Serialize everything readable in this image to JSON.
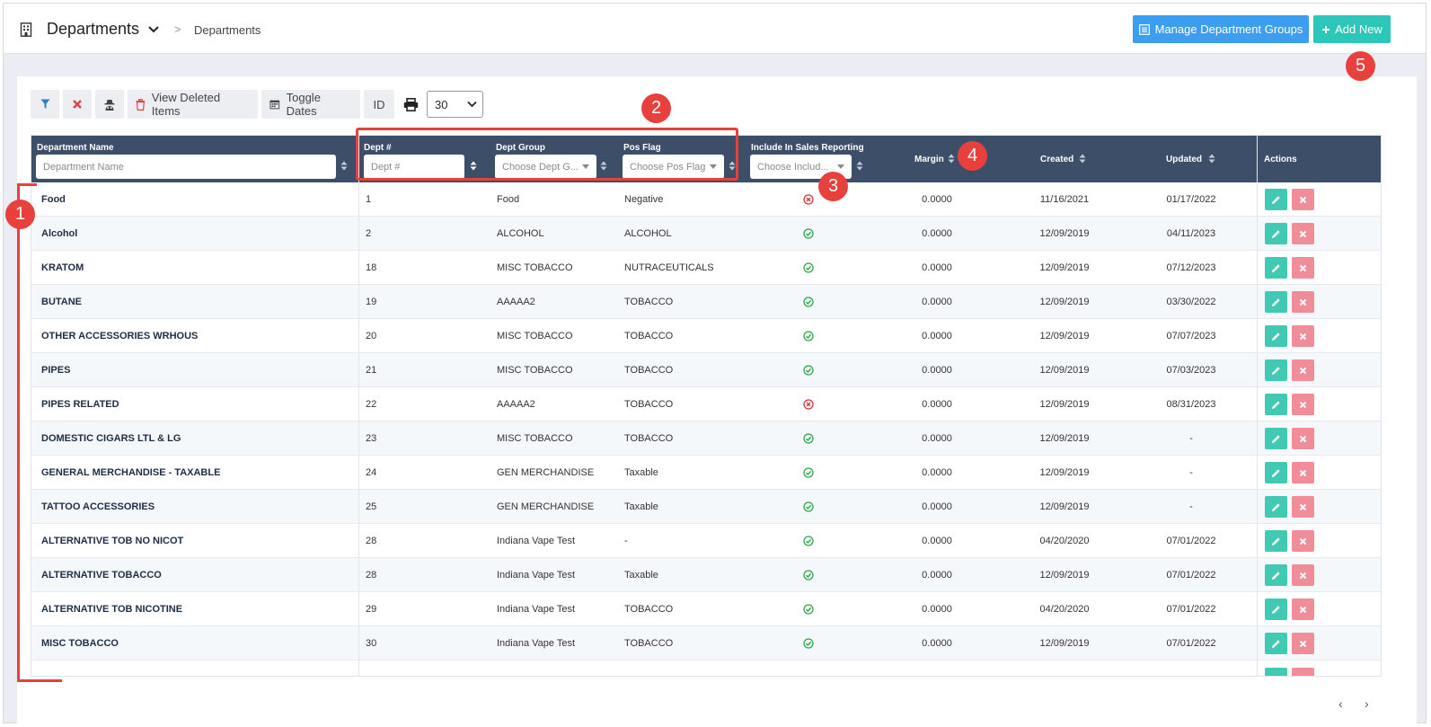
{
  "header": {
    "title": "Departments",
    "breadcrumb_sep": ">",
    "breadcrumb": "Departments",
    "manage_groups_label": "Manage Department Groups",
    "add_new_label": "Add New"
  },
  "toolbar": {
    "view_deleted_label": "View Deleted Items",
    "toggle_dates_label": "Toggle Dates",
    "id_label": "ID",
    "page_size": "30"
  },
  "columns": {
    "name": "Department Name",
    "dept_no": "Dept #",
    "group": "Dept Group",
    "pos_flag": "Pos Flag",
    "sales_reporting": "Include In Sales Reporting",
    "margin": "Margin",
    "created": "Created",
    "updated": "Updated",
    "actions": "Actions"
  },
  "filters": {
    "name_placeholder": "Department Name",
    "dept_no_placeholder": "Dept #",
    "group_placeholder": "Choose Dept G...",
    "pos_flag_placeholder": "Choose Pos Flag",
    "sales_reporting_placeholder": "Choose Includ..."
  },
  "rows": [
    {
      "name": "Food",
      "dept_no": "1",
      "group": "Food",
      "pos_flag": "Negative",
      "included": false,
      "margin": "0.0000",
      "created": "11/16/2021",
      "updated": "01/17/2022"
    },
    {
      "name": "Alcohol",
      "dept_no": "2",
      "group": "ALCOHOL",
      "pos_flag": "ALCOHOL",
      "included": true,
      "margin": "0.0000",
      "created": "12/09/2019",
      "updated": "04/11/2023"
    },
    {
      "name": "KRATOM",
      "dept_no": "18",
      "group": "MISC TOBACCO",
      "pos_flag": "NUTRACEUTICALS",
      "included": true,
      "margin": "0.0000",
      "created": "12/09/2019",
      "updated": "07/12/2023"
    },
    {
      "name": "BUTANE",
      "dept_no": "19",
      "group": "AAAAA2",
      "pos_flag": "TOBACCO",
      "included": true,
      "margin": "0.0000",
      "created": "12/09/2019",
      "updated": "03/30/2022"
    },
    {
      "name": "OTHER ACCESSORIES WRHOUS",
      "dept_no": "20",
      "group": "MISC TOBACCO",
      "pos_flag": "TOBACCO",
      "included": true,
      "margin": "0.0000",
      "created": "12/09/2019",
      "updated": "07/07/2023"
    },
    {
      "name": "PIPES",
      "dept_no": "21",
      "group": "MISC TOBACCO",
      "pos_flag": "TOBACCO",
      "included": true,
      "margin": "0.0000",
      "created": "12/09/2019",
      "updated": "07/03/2023"
    },
    {
      "name": "PIPES RELATED",
      "dept_no": "22",
      "group": "AAAAA2",
      "pos_flag": "TOBACCO",
      "included": false,
      "margin": "0.0000",
      "created": "12/09/2019",
      "updated": "08/31/2023"
    },
    {
      "name": "DOMESTIC CIGARS LTL & LG",
      "dept_no": "23",
      "group": "MISC TOBACCO",
      "pos_flag": "TOBACCO",
      "included": true,
      "margin": "0.0000",
      "created": "12/09/2019",
      "updated": "-"
    },
    {
      "name": "GENERAL MERCHANDISE - TAXABLE",
      "dept_no": "24",
      "group": "GEN MERCHANDISE",
      "pos_flag": "Taxable",
      "included": true,
      "margin": "0.0000",
      "created": "12/09/2019",
      "updated": "-"
    },
    {
      "name": "TATTOO ACCESSORIES",
      "dept_no": "25",
      "group": "GEN MERCHANDISE",
      "pos_flag": "Taxable",
      "included": true,
      "margin": "0.0000",
      "created": "12/09/2019",
      "updated": "-"
    },
    {
      "name": "ALTERNATIVE TOB NO NICOT",
      "dept_no": "28",
      "group": "Indiana Vape Test",
      "pos_flag": "-",
      "included": true,
      "margin": "0.0000",
      "created": "04/20/2020",
      "updated": "07/01/2022"
    },
    {
      "name": "ALTERNATIVE TOBACCO",
      "dept_no": "28",
      "group": "Indiana Vape Test",
      "pos_flag": "Taxable",
      "included": true,
      "margin": "0.0000",
      "created": "12/09/2019",
      "updated": "07/01/2022"
    },
    {
      "name": "ALTERNATIVE TOB NICOTINE",
      "dept_no": "29",
      "group": "Indiana Vape Test",
      "pos_flag": "TOBACCO",
      "included": true,
      "margin": "0.0000",
      "created": "04/20/2020",
      "updated": "07/01/2022"
    },
    {
      "name": "MISC TOBACCO",
      "dept_no": "30",
      "group": "Indiana Vape Test",
      "pos_flag": "TOBACCO",
      "included": true,
      "margin": "0.0000",
      "created": "12/09/2019",
      "updated": "07/01/2022"
    }
  ],
  "pager": {
    "prev": "‹",
    "next": "›"
  },
  "annotations": [
    "1",
    "2",
    "3",
    "4",
    "5"
  ],
  "colors": {
    "header_bg": "#3c4e68",
    "manage_btn": "#3d9ef0",
    "add_btn": "#2cc7b8",
    "edit_btn": "#42c9b4",
    "delete_btn": "#f08d98",
    "annotation": "#e8413d",
    "included": "#2ca84a",
    "excluded": "#d9363e"
  },
  "icons": {
    "header": "building-icon",
    "filter": "filter-icon",
    "clear": "close-icon",
    "incognito": "spy-icon",
    "trash": "trash-icon",
    "calendar": "calendar-icon",
    "print": "printer-icon",
    "edit": "pencil-icon",
    "delete": "x-icon",
    "included": "check-circle-icon",
    "excluded": "x-circle-icon"
  }
}
